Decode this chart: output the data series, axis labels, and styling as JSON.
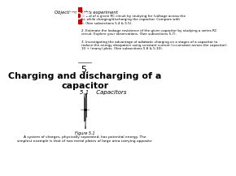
{
  "bg_color": "#ffffff",
  "pdf_badge_color": "#cc0000",
  "pdf_text": "PDF",
  "header_text": "Objectives of this experiment",
  "body_small_lines": [
    "al and of a given RC circuit by studying for (voltage across the",
    "ph while charging/discharging the capacitor. Compare with",
    "n. (See subsections 5.4 & 5.5).",
    "",
    "2. Estimate the leakage resistance of the given capacitor by studying a series RC",
    "circuit. Explore your observations. (See subsections 5.7).",
    "",
    "3. Investigating the advantage of adiabatic charging on a stages of a capacitor to",
    "reduce the energy dissipation using constant current (i=constant across the capacitor).",
    "10 + (many) plots. (See subsections 5.8 & 5.10)."
  ],
  "section_num": "5.",
  "section_title": "Charging and discharging of a\ncapacitor",
  "subsection": "5.1    Capacitors",
  "figure_label": "Figure 5.1",
  "caption": "A system of charges, physically separated, has potential energy. The\nsimplest example is that of two metal plates of large area carrying opposite",
  "title_fontsize": 7.5,
  "small_fontsize": 3.5,
  "section_num_fontsize": 8,
  "section_title_fontsize": 8,
  "subsection_fontsize": 5,
  "caption_fontsize": 3.2,
  "figure_label_fontsize": 3.5
}
